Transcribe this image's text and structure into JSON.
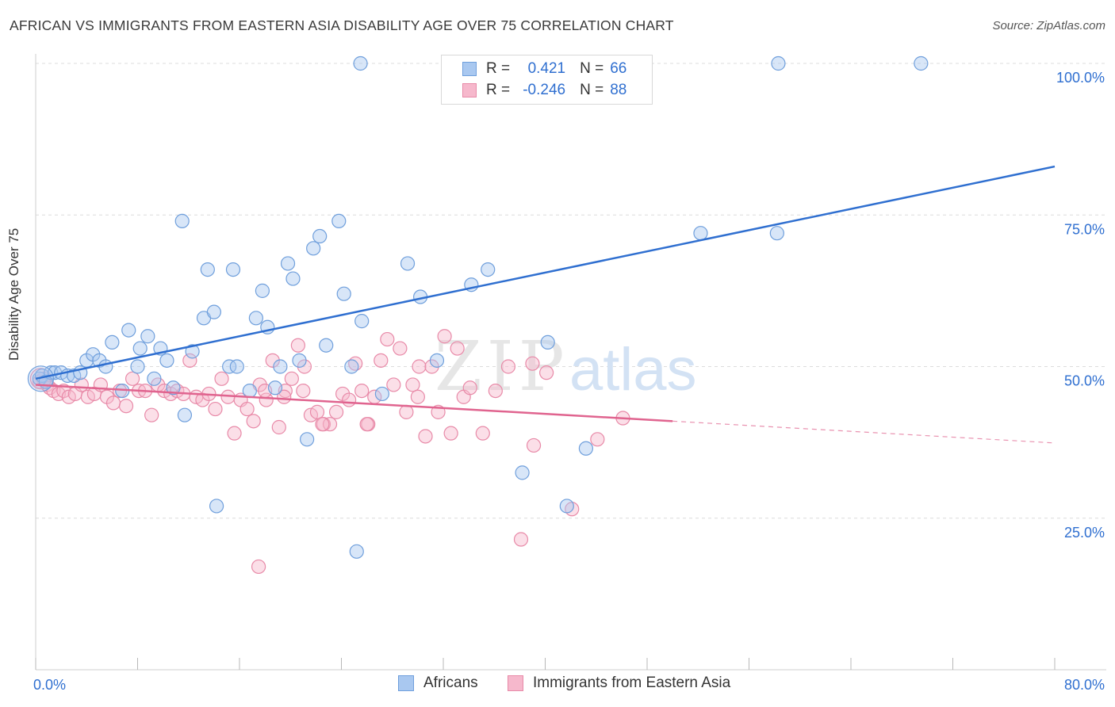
{
  "title": "AFRICAN VS IMMIGRANTS FROM EASTERN ASIA DISABILITY AGE OVER 75 CORRELATION CHART",
  "source": "Source: ZipAtlas.com",
  "watermark": {
    "zip": "ZIP",
    "atlas": "atlas"
  },
  "stats": {
    "row1": {
      "r_label": "R =",
      "r_value": "0.421",
      "n_label": "N =",
      "n_value": "66"
    },
    "row2": {
      "r_label": "R =",
      "r_value": "-0.246",
      "n_label": "N =",
      "n_value": "88"
    }
  },
  "legend": {
    "africans": "Africans",
    "immigrants": "Immigrants from Eastern Asia"
  },
  "colors": {
    "blue_fill": "#a9c8f0",
    "blue_stroke": "#6f9fdc",
    "blue_line": "#2f6fd0",
    "pink_fill": "#f6b8cc",
    "pink_stroke": "#e88aa8",
    "pink_line": "#e0648f",
    "tick_label": "#2f6fd0",
    "grid": "#dcdcdc"
  },
  "chart_data": {
    "type": "scatter",
    "xlabel": "",
    "ylabel": "Disability Age Over 75",
    "xlim": [
      0,
      80
    ],
    "ylim": [
      0,
      100
    ],
    "x_tick_labels": [
      "0.0%",
      "80.0%"
    ],
    "y_tick_labels": [
      "25.0%",
      "50.0%",
      "75.0%",
      "100.0%"
    ],
    "y_ticks": [
      25,
      50,
      75,
      100
    ],
    "grid": true,
    "series": [
      {
        "name": "Africans",
        "trend": {
          "x": [
            0,
            80
          ],
          "y": [
            48,
            83
          ]
        },
        "points": [
          [
            0.3,
            48
          ],
          [
            0.5,
            48.5
          ],
          [
            0.8,
            47.5
          ],
          [
            1.2,
            49
          ],
          [
            1.5,
            49
          ],
          [
            2,
            49
          ],
          [
            2.5,
            48.5
          ],
          [
            3,
            48.5
          ],
          [
            3.5,
            49
          ],
          [
            4,
            51
          ],
          [
            4.5,
            52
          ],
          [
            5,
            51
          ],
          [
            5.5,
            50
          ],
          [
            6,
            54
          ],
          [
            6.8,
            46
          ],
          [
            7.3,
            56
          ],
          [
            8,
            50
          ],
          [
            8.2,
            53
          ],
          [
            8.8,
            55
          ],
          [
            9.3,
            48
          ],
          [
            9.8,
            53
          ],
          [
            10.3,
            51
          ],
          [
            10.8,
            46.5
          ],
          [
            11.5,
            74
          ],
          [
            11.7,
            42
          ],
          [
            12.3,
            52.5
          ],
          [
            13.2,
            58
          ],
          [
            13.5,
            66
          ],
          [
            14,
            59
          ],
          [
            14.2,
            27
          ],
          [
            15.2,
            50
          ],
          [
            15.5,
            66
          ],
          [
            15.8,
            50
          ],
          [
            16.8,
            46
          ],
          [
            17.3,
            58
          ],
          [
            17.8,
            62.5
          ],
          [
            18.2,
            56.5
          ],
          [
            18.8,
            46.5
          ],
          [
            19.2,
            50
          ],
          [
            19.8,
            67
          ],
          [
            20.2,
            64.5
          ],
          [
            20.7,
            51
          ],
          [
            21.3,
            38
          ],
          [
            21.8,
            69.5
          ],
          [
            22.3,
            71.5
          ],
          [
            22.8,
            53.5
          ],
          [
            23.8,
            74
          ],
          [
            24.2,
            62
          ],
          [
            24.8,
            50
          ],
          [
            25.2,
            19.5
          ],
          [
            25.6,
            57.5
          ],
          [
            27.2,
            45.5
          ],
          [
            29.2,
            67
          ],
          [
            30.2,
            61.5
          ],
          [
            31.5,
            51
          ],
          [
            34.2,
            63.5
          ],
          [
            35.5,
            66
          ],
          [
            38.2,
            32.5
          ],
          [
            40.2,
            54
          ],
          [
            41.7,
            27
          ],
          [
            43.2,
            36.5
          ],
          [
            52.2,
            72
          ],
          [
            58.2,
            72
          ],
          [
            25.5,
            100
          ],
          [
            58.3,
            100
          ],
          [
            69.5,
            100
          ]
        ]
      },
      {
        "name": "Immigrants from Eastern Asia",
        "trend": {
          "x": [
            0,
            50
          ],
          "y": [
            47,
            41
          ]
        },
        "points": [
          [
            0.3,
            47.5
          ],
          [
            0.6,
            48
          ],
          [
            0.9,
            47
          ],
          [
            1.1,
            46.5
          ],
          [
            1.4,
            46
          ],
          [
            1.8,
            45.5
          ],
          [
            2.2,
            46
          ],
          [
            2.6,
            45
          ],
          [
            3.1,
            45.5
          ],
          [
            3.6,
            47
          ],
          [
            4.1,
            45
          ],
          [
            4.6,
            45.5
          ],
          [
            5.1,
            47
          ],
          [
            5.6,
            45
          ],
          [
            6.1,
            44
          ],
          [
            6.6,
            46
          ],
          [
            7.1,
            43.5
          ],
          [
            7.6,
            48
          ],
          [
            8.1,
            46
          ],
          [
            8.6,
            46
          ],
          [
            9.1,
            42
          ],
          [
            9.6,
            47
          ],
          [
            10.1,
            46
          ],
          [
            10.6,
            45.5
          ],
          [
            11.1,
            46
          ],
          [
            11.6,
            45.5
          ],
          [
            12.1,
            51
          ],
          [
            12.6,
            45
          ],
          [
            13.1,
            44.5
          ],
          [
            13.6,
            45.5
          ],
          [
            14.1,
            43
          ],
          [
            14.6,
            48
          ],
          [
            15.1,
            45
          ],
          [
            15.6,
            39
          ],
          [
            16.1,
            44.5
          ],
          [
            16.6,
            43
          ],
          [
            17.1,
            41
          ],
          [
            17.6,
            47
          ],
          [
            18.1,
            44.5
          ],
          [
            18.6,
            51
          ],
          [
            19.1,
            40
          ],
          [
            19.6,
            46
          ],
          [
            20.1,
            48
          ],
          [
            20.6,
            53.5
          ],
          [
            21.1,
            50
          ],
          [
            21.6,
            42
          ],
          [
            22.1,
            42.5
          ],
          [
            22.6,
            40.5
          ],
          [
            23.1,
            40.5
          ],
          [
            23.6,
            42.5
          ],
          [
            24.1,
            45.5
          ],
          [
            24.6,
            44.5
          ],
          [
            25.1,
            50.5
          ],
          [
            25.6,
            46
          ],
          [
            26.1,
            40.5
          ],
          [
            26.6,
            45
          ],
          [
            27.1,
            51
          ],
          [
            27.6,
            54.5
          ],
          [
            28.1,
            47
          ],
          [
            28.6,
            53
          ],
          [
            29.1,
            42.5
          ],
          [
            29.6,
            47
          ],
          [
            30.1,
            50
          ],
          [
            30.6,
            38.5
          ],
          [
            31.1,
            50
          ],
          [
            31.6,
            42.5
          ],
          [
            32.1,
            55
          ],
          [
            32.6,
            39
          ],
          [
            33.1,
            53
          ],
          [
            33.6,
            45
          ],
          [
            34.1,
            46.5
          ],
          [
            35.1,
            39
          ],
          [
            36.1,
            46
          ],
          [
            37.1,
            50
          ],
          [
            38.1,
            21.5
          ],
          [
            39.1,
            37
          ],
          [
            40.1,
            49
          ],
          [
            42.1,
            26.5
          ],
          [
            44.1,
            38
          ],
          [
            46.1,
            41.5
          ],
          [
            17.5,
            17
          ],
          [
            19.5,
            45
          ],
          [
            22.5,
            40.5
          ],
          [
            26,
            40.5
          ],
          [
            30,
            45
          ],
          [
            39,
            50.5
          ],
          [
            21,
            46
          ],
          [
            18,
            46
          ]
        ]
      }
    ]
  }
}
